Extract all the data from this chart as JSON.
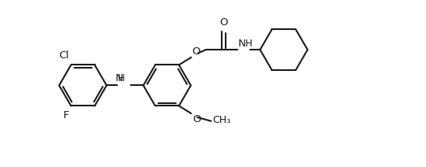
{
  "bg_color": "#ffffff",
  "lc": "#1a1a1a",
  "lw": 1.5,
  "fs": 9.5,
  "figsize": [
    5.38,
    2.12
  ],
  "dpi": 100,
  "xlim": [
    -0.3,
    10.8
  ],
  "ylim": [
    -0.2,
    4.0
  ]
}
